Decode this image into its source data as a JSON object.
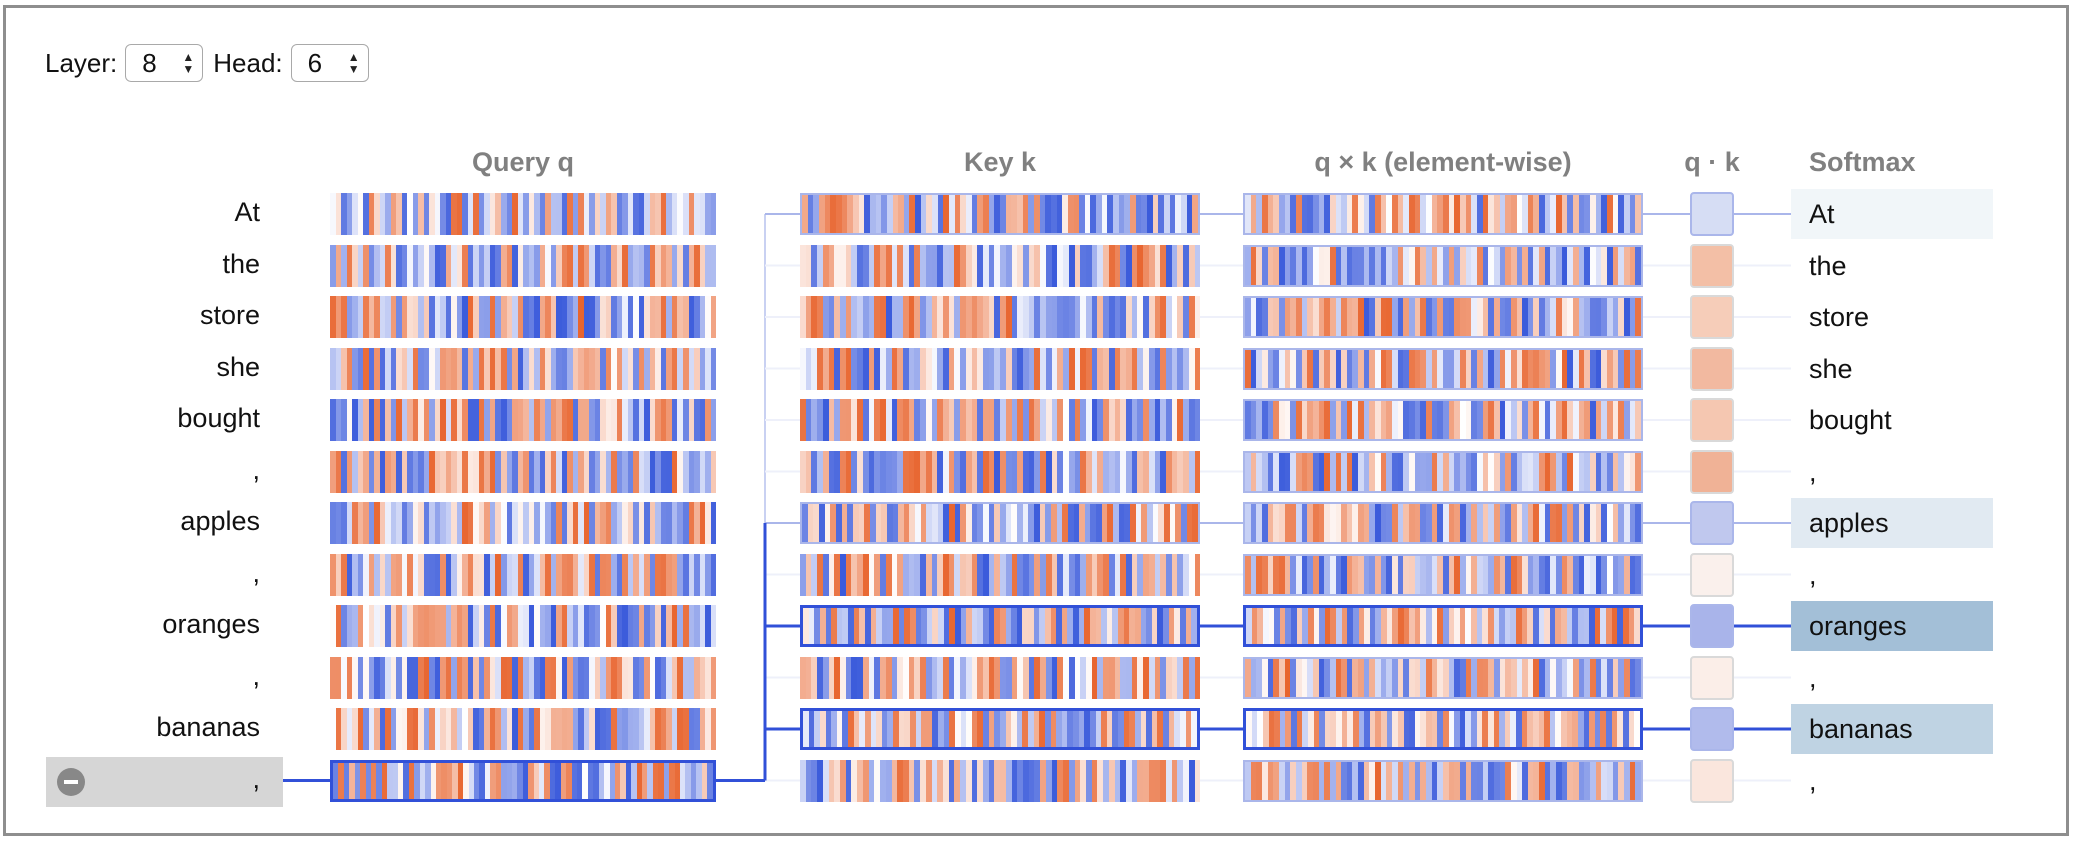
{
  "controls": {
    "layer_label": "Layer:",
    "layer_value": "8",
    "head_label": "Head:",
    "head_value": "6"
  },
  "headers": {
    "query": "Query q",
    "key": "Key k",
    "product": "q × k (element-wise)",
    "dot": "q · k",
    "softmax": "Softmax"
  },
  "tokens": [
    "At",
    "the",
    "store",
    "she",
    "bought",
    ",",
    "apples",
    ",",
    "oranges",
    ",",
    "bananas",
    ","
  ],
  "selected_token_index": 11,
  "softmax_weights": [
    0.08,
    0,
    0,
    0,
    0,
    0,
    0.18,
    0,
    0.55,
    0,
    0.38,
    0
  ],
  "dot_colors": [
    "#d6ddf4",
    "#f3bfa6",
    "#f6cdb9",
    "#f2b9a0",
    "#f5c7b1",
    "#f0b296",
    "#c0c8ee",
    "#faf0ec",
    "#a9b4ea",
    "#fbeee8",
    "#b1bbec",
    "#fae6dd"
  ],
  "colors": {
    "accent_blue": "#3150d8",
    "neg_blue": "#3b5bdb",
    "pos_orange": "#e8652f",
    "softmax_highlight": "#a7c3db",
    "selected_gray": "#d6d6d6"
  }
}
